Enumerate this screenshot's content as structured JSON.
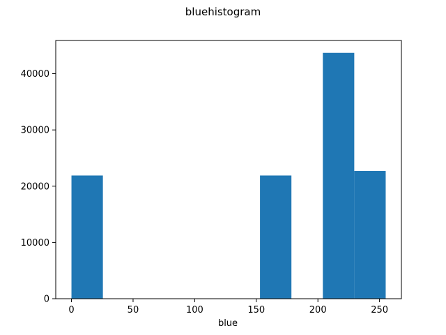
{
  "chart_data": {
    "type": "bar",
    "title": "bluehistogram",
    "xlabel": "blue",
    "ylabel": "",
    "xlim": [
      -12.75,
      267.75
    ],
    "ylim": [
      0,
      45900
    ],
    "xticks": [
      0,
      50,
      100,
      150,
      200,
      250
    ],
    "yticks": [
      0,
      10000,
      20000,
      30000,
      40000
    ],
    "bins": [
      {
        "start": 0,
        "end": 25.5,
        "value": 21900
      },
      {
        "start": 25.5,
        "end": 51,
        "value": 0
      },
      {
        "start": 51,
        "end": 76.5,
        "value": 0
      },
      {
        "start": 76.5,
        "end": 102,
        "value": 0
      },
      {
        "start": 102,
        "end": 127.5,
        "value": 0
      },
      {
        "start": 127.5,
        "end": 153,
        "value": 0
      },
      {
        "start": 153,
        "end": 178.5,
        "value": 21900
      },
      {
        "start": 178.5,
        "end": 204,
        "value": 0
      },
      {
        "start": 204,
        "end": 229.5,
        "value": 43700
      },
      {
        "start": 229.5,
        "end": 255,
        "value": 22700
      }
    ],
    "bar_color": "#1f77b4",
    "grid": false,
    "legend": "none"
  }
}
